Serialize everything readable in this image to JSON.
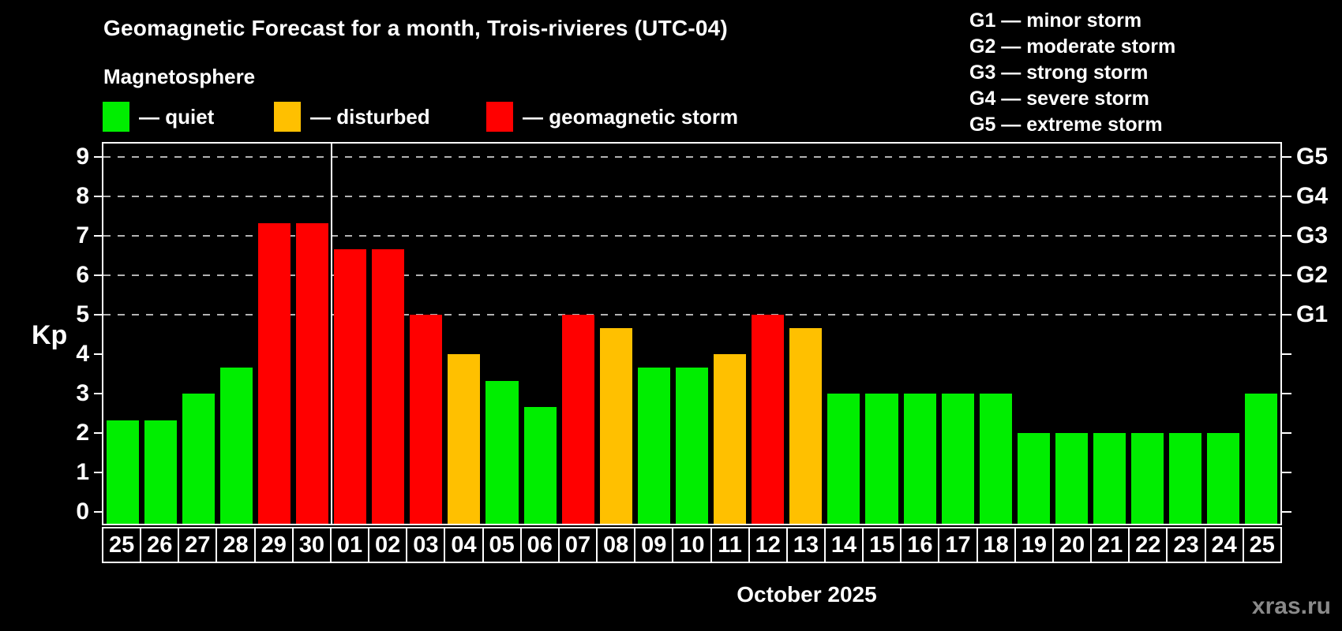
{
  "title": "Geomagnetic Forecast for a month, Trois-rivieres (UTC-04)",
  "watermark": "xras.ru",
  "legend": {
    "heading": "Magnetosphere",
    "items": [
      {
        "key": "quiet",
        "label": "— quiet",
        "color": "#00ee00"
      },
      {
        "key": "disturbed",
        "label": "— disturbed",
        "color": "#ffc000"
      },
      {
        "key": "storm",
        "label": "— geomagnetic storm",
        "color": "#ff0000"
      }
    ]
  },
  "chart_data": {
    "type": "bar",
    "title": "Geomagnetic Forecast for a month, Trois-rivieres (UTC-04)",
    "xlabel": "October 2025",
    "ylabel": "Kp",
    "ylim": [
      0,
      9
    ],
    "yticks": [
      0,
      1,
      2,
      3,
      4,
      5,
      6,
      7,
      8,
      9
    ],
    "grid_kp": [
      5,
      6,
      7,
      8,
      9
    ],
    "grid_on": true,
    "legend_position": "top-left",
    "categories": [
      "25",
      "26",
      "27",
      "28",
      "29",
      "30",
      "01",
      "02",
      "03",
      "04",
      "05",
      "06",
      "07",
      "08",
      "09",
      "10",
      "11",
      "12",
      "13",
      "14",
      "15",
      "16",
      "17",
      "18",
      "19",
      "20",
      "21",
      "22",
      "23",
      "24",
      "25"
    ],
    "values": [
      2.33,
      2.33,
      3.0,
      3.67,
      7.33,
      7.33,
      6.67,
      6.67,
      5.0,
      4.0,
      3.33,
      2.67,
      5.0,
      4.67,
      3.67,
      3.67,
      4.0,
      5.0,
      4.67,
      3.0,
      3.0,
      3.0,
      3.0,
      3.0,
      2.0,
      2.0,
      2.0,
      2.0,
      2.0,
      2.0,
      3.0
    ],
    "statuses": [
      "quiet",
      "quiet",
      "quiet",
      "quiet",
      "storm",
      "storm",
      "storm",
      "storm",
      "storm",
      "disturbed",
      "quiet",
      "quiet",
      "storm",
      "disturbed",
      "quiet",
      "quiet",
      "disturbed",
      "storm",
      "disturbed",
      "quiet",
      "quiet",
      "quiet",
      "quiet",
      "quiet",
      "quiet",
      "quiet",
      "quiet",
      "quiet",
      "quiet",
      "quiet",
      "quiet"
    ],
    "month_separator_before_index": 6,
    "colors": {
      "quiet": "#00ee00",
      "disturbed": "#ffc000",
      "storm": "#ff0000"
    },
    "g_scale": [
      {
        "label": "G1",
        "kp": 5,
        "description": "G1 — minor storm"
      },
      {
        "label": "G2",
        "kp": 6,
        "description": "G2 — moderate storm"
      },
      {
        "label": "G3",
        "kp": 7,
        "description": "G3 — strong storm"
      },
      {
        "label": "G4",
        "kp": 8,
        "description": "G4 — severe storm"
      },
      {
        "label": "G5",
        "kp": 9,
        "description": "G5 — extreme storm"
      }
    ]
  }
}
